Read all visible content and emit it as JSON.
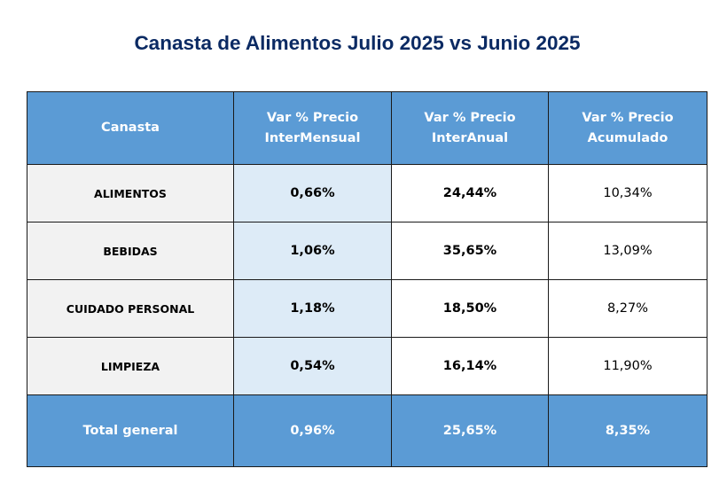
{
  "title": "Canasta de Alimentos Julio 2025 vs Junio 2025",
  "table": {
    "headers": {
      "basket": "Canasta",
      "monthly": [
        "Var % Precio",
        "InterMensual"
      ],
      "annual": [
        "Var % Precio",
        "InterAnual"
      ],
      "cumulative": [
        "Var % Precio",
        "Acumulado"
      ]
    },
    "rows": [
      {
        "name": "ALIMENTOS",
        "monthly": "0,66%",
        "annual": "24,44%",
        "cumulative": "10,34%"
      },
      {
        "name": "BEBIDAS",
        "monthly": "1,06%",
        "annual": "35,65%",
        "cumulative": "13,09%"
      },
      {
        "name": "CUIDADO PERSONAL",
        "monthly": "1,18%",
        "annual": "18,50%",
        "cumulative": "8,27%"
      },
      {
        "name": "LIMPIEZA",
        "monthly": "0,54%",
        "annual": "16,14%",
        "cumulative": "11,90%"
      }
    ],
    "total": {
      "name": "Total general",
      "monthly": "0,96%",
      "annual": "25,65%",
      "cumulative": "8,35%"
    }
  },
  "colors": {
    "title": "#0b2a63",
    "header_fill": "#5b9bd5",
    "header_text": "#ffffff",
    "name_column_fill": "#f2f2f2",
    "monthly_column_fill": "#ddebf7",
    "body_fill": "#ffffff",
    "border": "#1a1a1a"
  }
}
